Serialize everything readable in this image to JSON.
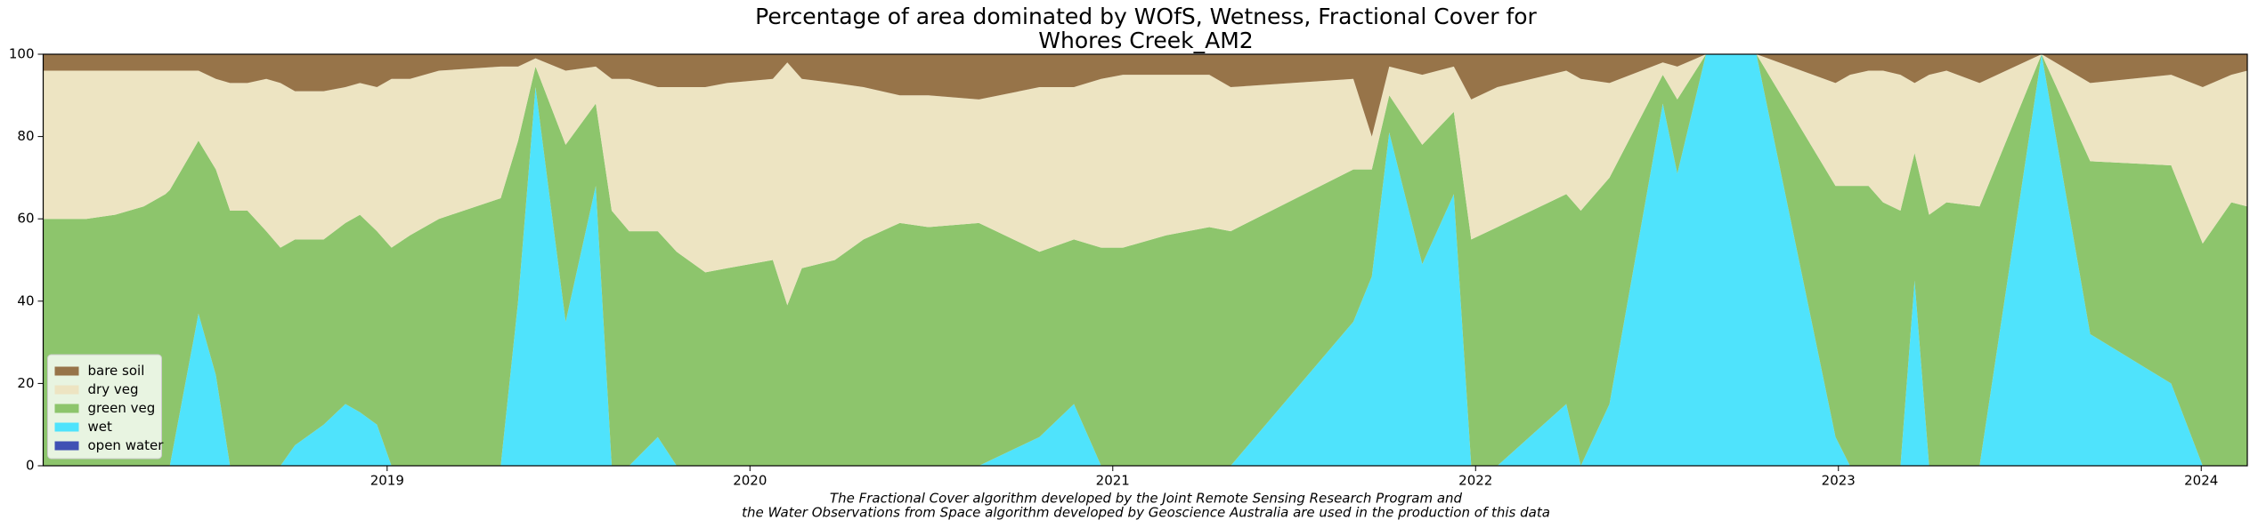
{
  "chart_data": {
    "type": "stackplot",
    "title": [
      "Percentage of area dominated by WOfS, Wetness, Fractional Cover for",
      "Whores Creek_AM2"
    ],
    "footnote": [
      "The Fractional Cover algorithm developed by the Joint Remote Sensing Research Program and",
      "the Water Observations from Space algorithm developed by Geoscience Australia are used in the production of this data"
    ],
    "x": [
      2018.052,
      2018.111,
      2018.171,
      2018.25,
      2018.329,
      2018.389,
      2018.401,
      2018.48,
      2018.528,
      2018.567,
      2018.615,
      2018.667,
      2018.706,
      2018.746,
      2018.825,
      2018.885,
      2018.925,
      2018.972,
      2019.012,
      2019.063,
      2019.143,
      2019.313,
      2019.361,
      2019.409,
      2019.492,
      2019.575,
      2019.619,
      2019.667,
      2019.746,
      2019.798,
      2019.877,
      2019.937,
      2020.063,
      2020.103,
      2020.143,
      2020.234,
      2020.313,
      2020.413,
      2020.492,
      2020.631,
      2020.798,
      2020.893,
      2020.968,
      2021.028,
      2021.147,
      2021.266,
      2021.325,
      2021.663,
      2021.714,
      2021.762,
      2021.853,
      2021.94,
      2021.988,
      2022.06,
      2022.25,
      2022.29,
      2022.369,
      2022.516,
      2022.556,
      2022.635,
      2022.774,
      2022.992,
      2023.032,
      2023.083,
      2023.123,
      2023.171,
      2023.21,
      2023.25,
      2023.298,
      2023.389,
      2023.56,
      2023.694,
      2023.917,
      2024.004,
      2024.083,
      2024.127
    ],
    "series": [
      {
        "name": "open water",
        "color": "#4050b4",
        "values": [
          0,
          0,
          0,
          0,
          0,
          0,
          0,
          0,
          0,
          0,
          0,
          0,
          0,
          0,
          0,
          0,
          0,
          0,
          0,
          0,
          0,
          0,
          0,
          0,
          0,
          0,
          0,
          0,
          0,
          0,
          0,
          0,
          0,
          0,
          0,
          0,
          0,
          0,
          0,
          0,
          0,
          0,
          0,
          0,
          0,
          0,
          0,
          0,
          0,
          0,
          0,
          0,
          0,
          0,
          0,
          0,
          0,
          0,
          0,
          0,
          0,
          0,
          0,
          0,
          0,
          0,
          0,
          0,
          0,
          0,
          0,
          0,
          0,
          0,
          0,
          0
        ]
      },
      {
        "name": "wet",
        "color": "#4fe3fc",
        "values": [
          0,
          0,
          0,
          0,
          0,
          0,
          0,
          37,
          22,
          0,
          0,
          0,
          0,
          5,
          10,
          15,
          13,
          10,
          0,
          0,
          0,
          0,
          40,
          92,
          35,
          68,
          0,
          0,
          7,
          0,
          0,
          0,
          0,
          0,
          0,
          0,
          0,
          0,
          0,
          0,
          7,
          15,
          0,
          0,
          0,
          0,
          0,
          35,
          46,
          81,
          49,
          66,
          0,
          0,
          15,
          0,
          15,
          88,
          71,
          100,
          100,
          7,
          0,
          0,
          0,
          0,
          45,
          0,
          0,
          0,
          100,
          32,
          20,
          0,
          0,
          0
        ]
      },
      {
        "name": "green veg",
        "color": "#8dc56c",
        "values": [
          60,
          60,
          60,
          61,
          63,
          66,
          67,
          42,
          50,
          62,
          62,
          57,
          53,
          50,
          45,
          44,
          48,
          47,
          53,
          56,
          60,
          65,
          39,
          5,
          43,
          20,
          62,
          57,
          50,
          52,
          47,
          48,
          50,
          39,
          48,
          50,
          55,
          59,
          58,
          59,
          45,
          40,
          53,
          53,
          56,
          58,
          57,
          37,
          26,
          9,
          29,
          20,
          55,
          58,
          51,
          62,
          55,
          7,
          18,
          0,
          0,
          61,
          68,
          68,
          64,
          62,
          31,
          61,
          64,
          63,
          0,
          42,
          53,
          54,
          64,
          63
        ]
      },
      {
        "name": "dry veg",
        "color": "#ede4c2",
        "values": [
          36,
          36,
          36,
          35,
          33,
          30,
          29,
          17,
          22,
          31,
          31,
          37,
          40,
          36,
          36,
          33,
          32,
          35,
          41,
          38,
          36,
          32,
          18,
          2,
          18,
          9,
          32,
          37,
          35,
          40,
          45,
          45,
          44,
          59,
          46,
          43,
          37,
          31,
          32,
          30,
          40,
          37,
          41,
          42,
          39,
          37,
          35,
          22,
          8,
          7,
          17,
          11,
          34,
          34,
          30,
          32,
          23,
          3,
          8,
          0,
          0,
          25,
          27,
          28,
          32,
          33,
          17,
          34,
          32,
          30,
          0,
          19,
          22,
          38,
          31,
          33
        ]
      },
      {
        "name": "bare soil",
        "color": "#977449",
        "values": [
          4,
          4,
          4,
          4,
          4,
          4,
          4,
          4,
          6,
          7,
          7,
          6,
          7,
          9,
          9,
          8,
          7,
          8,
          6,
          6,
          4,
          3,
          3,
          1,
          4,
          3,
          6,
          6,
          8,
          8,
          8,
          7,
          6,
          2,
          6,
          7,
          8,
          10,
          10,
          11,
          8,
          8,
          6,
          5,
          5,
          5,
          8,
          6,
          20,
          3,
          5,
          3,
          11,
          8,
          4,
          6,
          7,
          2,
          3,
          0,
          0,
          7,
          5,
          4,
          4,
          5,
          7,
          5,
          4,
          7,
          0,
          7,
          5,
          8,
          5,
          4
        ]
      }
    ],
    "xlim": [
      2018.052,
      2024.127
    ],
    "xticks": [
      2019,
      2020,
      2021,
      2022,
      2023,
      2024
    ],
    "ylim": [
      0,
      100
    ],
    "yticks": [
      0,
      20,
      40,
      60,
      80,
      100
    ],
    "legend": "lower left"
  }
}
